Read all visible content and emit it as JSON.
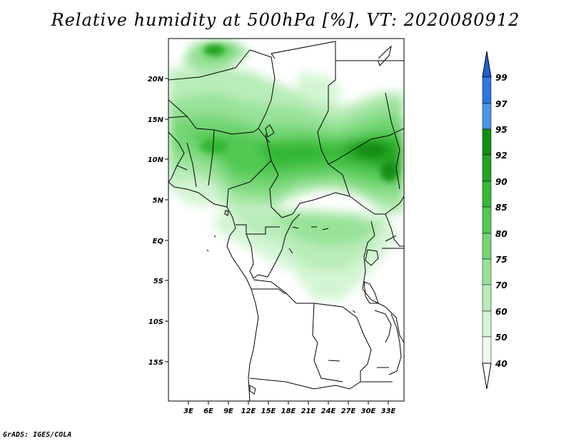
{
  "title": "Relative humidity at 500hPa [%], VT: 2020080912",
  "credit": "GrADS: IGES/COLA",
  "map": {
    "lat_labels": [
      "20N",
      "15N",
      "10N",
      "5N",
      "EQ",
      "5S",
      "10S",
      "15S"
    ],
    "lon_labels": [
      "3E",
      "6E",
      "9E",
      "12E",
      "15E",
      "18E",
      "21E",
      "24E",
      "27E",
      "30E",
      "33E"
    ]
  },
  "colorbar": {
    "levels": [
      "99",
      "97",
      "95",
      "92",
      "90",
      "85",
      "80",
      "75",
      "70",
      "60",
      "50",
      "40"
    ],
    "colors": [
      "#1e5fd1",
      "#2e76e0",
      "#4a96ea",
      "#128e12",
      "#23a323",
      "#36b836",
      "#52c852",
      "#74d674",
      "#98e298",
      "#b8ecb8",
      "#d4f5d4",
      "#ecfcec"
    ]
  }
}
